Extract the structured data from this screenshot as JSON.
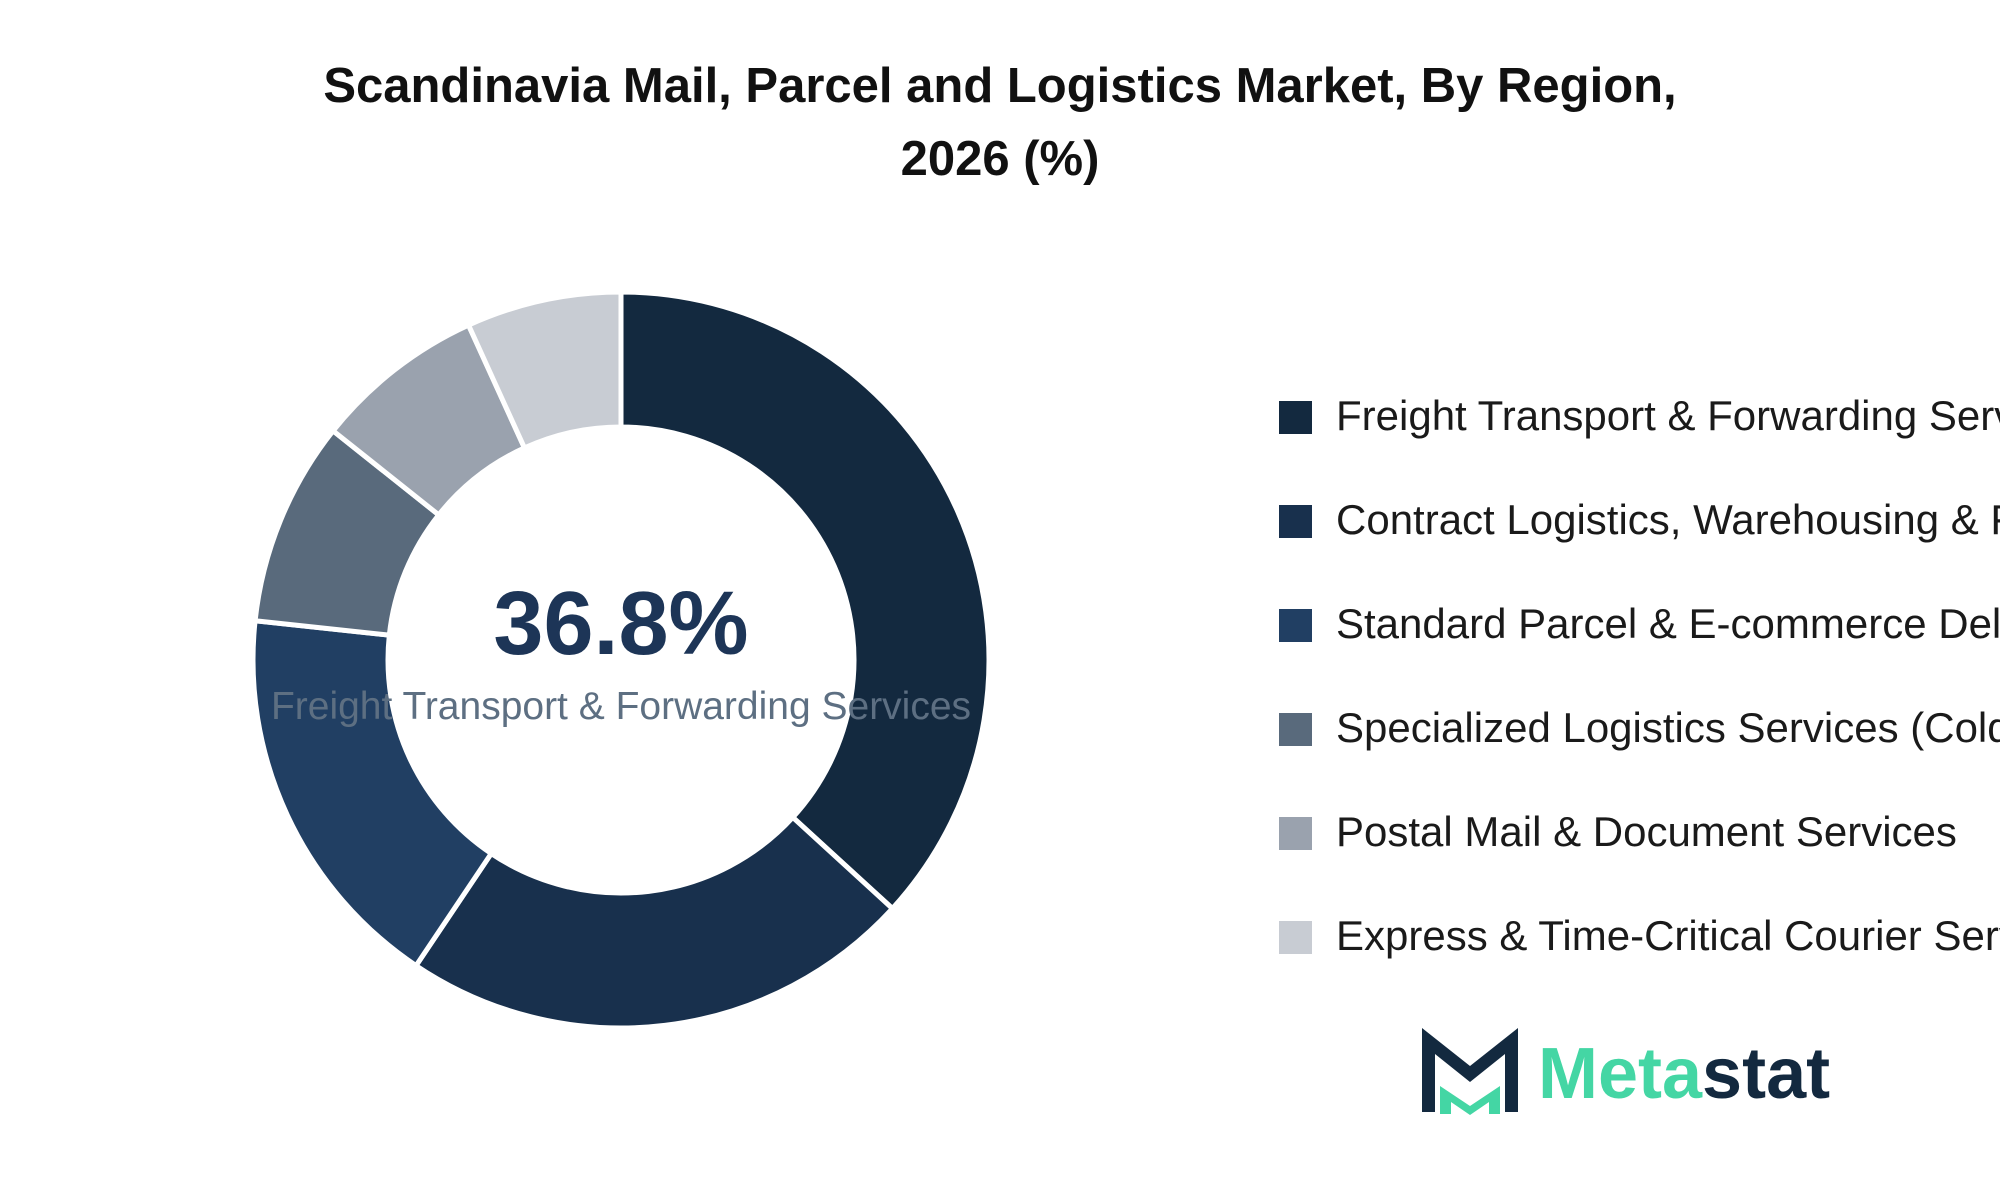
{
  "title_lines": [
    "Scandinavia Mail, Parcel and Logistics Market, By Region,",
    "2026 (%)"
  ],
  "center": {
    "value": "36.8%",
    "label": "Freight Transport & Forwarding Services"
  },
  "legend": [
    {
      "label": "Freight Transport & Forwarding Services",
      "color": "#13293f"
    },
    {
      "label": "Contract Logistics, Warehousing & Fulfillment",
      "color": "#18304d"
    },
    {
      "label": "Standard Parcel & E-commerce Delivery",
      "color": "#213f63"
    },
    {
      "label": "Specialized Logistics Services (Cold Chain, Healthcare)",
      "color": "#596a7c"
    },
    {
      "label": "Postal Mail & Document Services",
      "color": "#9aa2ae"
    },
    {
      "label": "Express & Time-Critical Courier Services",
      "color": "#c8ccd3"
    }
  ],
  "logo": {
    "text_part1": "Meta",
    "text_part2": "stat",
    "color_green": "#44d6a4",
    "color_dark": "#13293f"
  },
  "chart_data": {
    "type": "pie",
    "donut": true,
    "title": "Scandinavia Mail, Parcel and Logistics Market, By Region, 2026 (%)",
    "categories": [
      "Freight Transport & Forwarding Services",
      "Contract Logistics, Warehousing & Fulfillment",
      "Standard Parcel & E-commerce Delivery",
      "Specialized Logistics Services (Cold Chain, Healthcare)",
      "Postal Mail & Document Services",
      "Express & Time-Critical Courier Services"
    ],
    "values": [
      36.8,
      22.6,
      17.3,
      9.0,
      7.5,
      6.8
    ],
    "colors": [
      "#13293f",
      "#18304d",
      "#213f63",
      "#596a7c",
      "#9aa2ae",
      "#c8ccd3"
    ],
    "legend_position": "right"
  }
}
